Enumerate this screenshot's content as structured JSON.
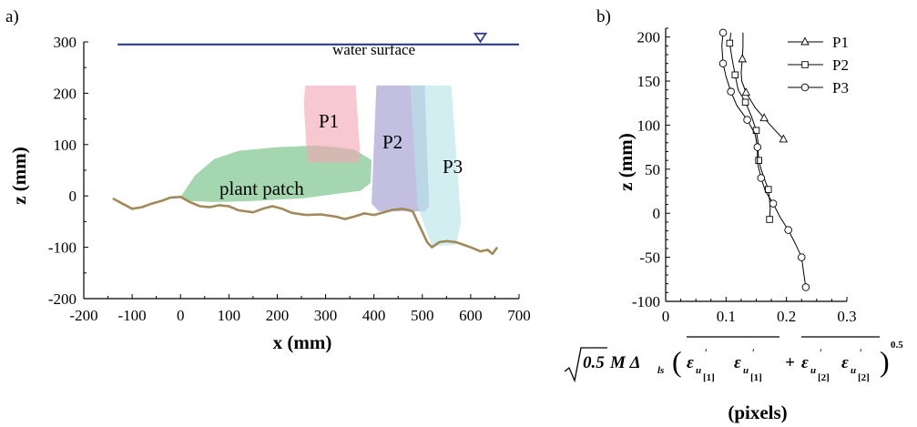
{
  "chart_data": [
    {
      "id": "a",
      "type": "area",
      "panel_label": "a)",
      "xlabel": "x (mm)",
      "ylabel": "z (mm)",
      "xlim": [
        -200,
        700
      ],
      "ylim": [
        -200,
        300
      ],
      "x_ticks": [
        "-200",
        "-100",
        "0",
        "100",
        "200",
        "300",
        "400",
        "500",
        "600",
        "700"
      ],
      "y_ticks": [
        "-200",
        "-100",
        "0",
        "100",
        "200",
        "300"
      ],
      "water_surface": {
        "label": "water surface",
        "z": 295,
        "x_start": -130,
        "x_end": 700,
        "marker_x": 620,
        "color": "#2b3a8c"
      },
      "bed": {
        "color": "#a08a5a",
        "points": [
          [
            -140,
            -5
          ],
          [
            -120,
            -15
          ],
          [
            -100,
            -25
          ],
          [
            -80,
            -22
          ],
          [
            -60,
            -15
          ],
          [
            -40,
            -10
          ],
          [
            -20,
            -3
          ],
          [
            0,
            -2
          ],
          [
            20,
            -12
          ],
          [
            40,
            -20
          ],
          [
            60,
            -22
          ],
          [
            80,
            -18
          ],
          [
            100,
            -20
          ],
          [
            120,
            -28
          ],
          [
            150,
            -32
          ],
          [
            170,
            -25
          ],
          [
            190,
            -20
          ],
          [
            210,
            -25
          ],
          [
            230,
            -33
          ],
          [
            260,
            -37
          ],
          [
            290,
            -36
          ],
          [
            320,
            -40
          ],
          [
            340,
            -45
          ],
          [
            360,
            -40
          ],
          [
            380,
            -34
          ],
          [
            400,
            -37
          ],
          [
            420,
            -32
          ],
          [
            440,
            -27
          ],
          [
            460,
            -25
          ],
          [
            480,
            -30
          ],
          [
            490,
            -50
          ],
          [
            500,
            -70
          ],
          [
            510,
            -90
          ],
          [
            520,
            -100
          ],
          [
            535,
            -90
          ],
          [
            550,
            -88
          ],
          [
            570,
            -90
          ],
          [
            600,
            -100
          ],
          [
            620,
            -108
          ],
          [
            635,
            -105
          ],
          [
            645,
            -113
          ],
          [
            655,
            -100
          ]
        ]
      },
      "regions": [
        {
          "label": "plant patch",
          "color": "#6cbf80",
          "points": [
            [
              0,
              -2
            ],
            [
              30,
              40
            ],
            [
              70,
              72
            ],
            [
              120,
              88
            ],
            [
              200,
              95
            ],
            [
              280,
              98
            ],
            [
              320,
              95
            ],
            [
              360,
              90
            ],
            [
              395,
              70
            ],
            [
              393,
              25
            ],
            [
              372,
              10
            ],
            [
              330,
              5
            ],
            [
              250,
              -5
            ],
            [
              150,
              -10
            ],
            [
              70,
              -12
            ],
            [
              20,
              -10
            ]
          ]
        },
        {
          "label": "P1",
          "color": "#f2a6b5",
          "points": [
            [
              258,
              215
            ],
            [
              362,
              215
            ],
            [
              372,
              75
            ],
            [
              366,
              65
            ],
            [
              262,
              65
            ],
            [
              255,
              180
            ]
          ]
        },
        {
          "label": "P2",
          "color": "#9c98cf",
          "points": [
            [
              405,
              215
            ],
            [
              505,
              215
            ],
            [
              514,
              -20
            ],
            [
              505,
              -30
            ],
            [
              410,
              -30
            ],
            [
              395,
              -15
            ]
          ]
        },
        {
          "label": "P3",
          "color": "#b6e3e6",
          "points": [
            [
              475,
              215
            ],
            [
              560,
              215
            ],
            [
              580,
              -50
            ],
            [
              570,
              -95
            ],
            [
              520,
              -98
            ],
            [
              490,
              -20
            ]
          ]
        }
      ]
    },
    {
      "id": "b",
      "type": "line",
      "panel_label": "b)",
      "xlabel_unit": "(pixels)",
      "ylabel": "z (mm)",
      "xlim": [
        0,
        0.3
      ],
      "ylim": [
        -100,
        210
      ],
      "x_ticks": [
        "0",
        "0.1",
        "0.2",
        "0.3"
      ],
      "y_ticks": [
        "-100",
        "-50",
        "0",
        "50",
        "100",
        "150",
        "200"
      ],
      "legend_position": "top-right",
      "xlabel_formula": {
        "sqrt_arg": "0.5",
        "prefix": "M Δ",
        "prefix_sub": "ls",
        "eps": "ε",
        "u": "u",
        "prime": "′",
        "idx1": "[1]",
        "idx2": "[2]",
        "plus": "+",
        "exponent": "0.5"
      },
      "series": [
        {
          "name": "P1",
          "marker": "triangle",
          "z": [
            205,
            190,
            175,
            160,
            150,
            137,
            120,
            108,
            95,
            84
          ],
          "x": [
            0.128,
            0.128,
            0.127,
            0.125,
            0.126,
            0.133,
            0.148,
            0.163,
            0.18,
            0.195
          ],
          "marker_idx": [
            2,
            5,
            7,
            9
          ]
        },
        {
          "name": "P2",
          "marker": "square",
          "z": [
            205,
            193,
            175,
            157,
            140,
            126,
            110,
            94,
            80,
            70,
            60,
            50,
            40,
            27,
            15,
            5,
            -7
          ],
          "x": [
            0.108,
            0.106,
            0.11,
            0.115,
            0.12,
            0.132,
            0.142,
            0.15,
            0.153,
            0.153,
            0.154,
            0.158,
            0.163,
            0.17,
            0.172,
            0.173,
            0.172
          ],
          "marker_idx": [
            1,
            3,
            5,
            7,
            10,
            13,
            16
          ]
        },
        {
          "name": "P3",
          "marker": "circle",
          "z": [
            205,
            190,
            170,
            155,
            138,
            122,
            106,
            90,
            75,
            57,
            40,
            25,
            11,
            -5,
            -19,
            -35,
            -50,
            -65,
            -84
          ],
          "x": [
            0.095,
            0.093,
            0.095,
            0.1,
            0.108,
            0.118,
            0.135,
            0.148,
            0.152,
            0.152,
            0.158,
            0.165,
            0.178,
            0.19,
            0.203,
            0.215,
            0.225,
            0.228,
            0.232
          ],
          "marker_idx": [
            0,
            2,
            4,
            6,
            8,
            10,
            12,
            14,
            16,
            18
          ]
        }
      ]
    }
  ]
}
